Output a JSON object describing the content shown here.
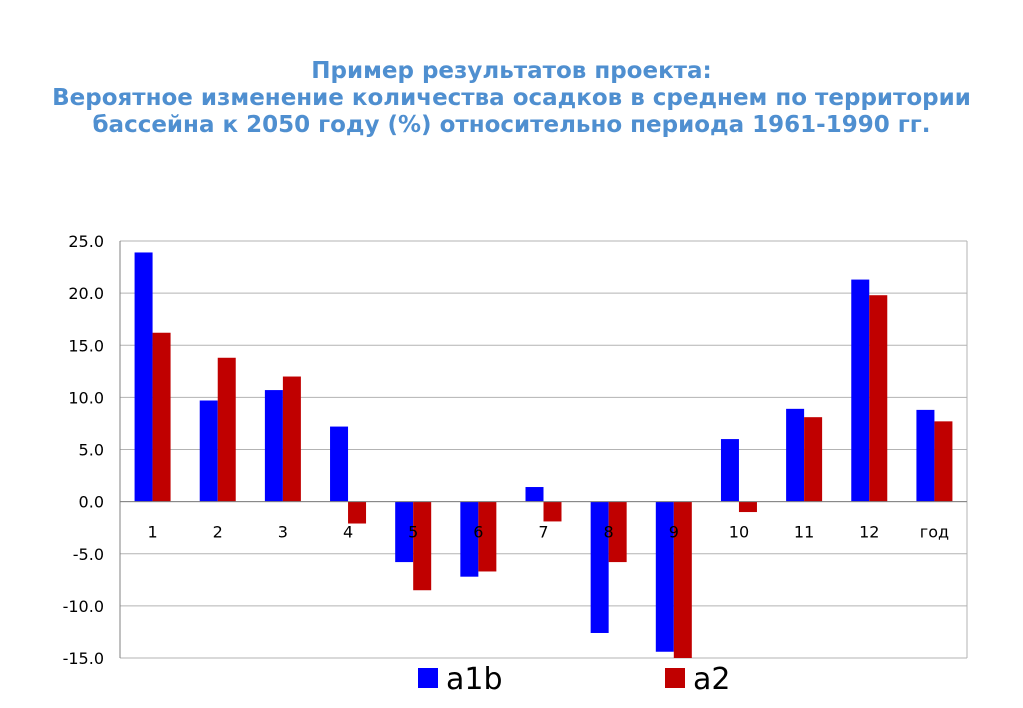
{
  "title": {
    "line1": "Пример результатов проекта:",
    "line2": "Вероятное изменение количества осадков в среднем по территории",
    "line3": "бассейна к 2050 году (%)  относительно периода 1961-1990 гг."
  },
  "chart_data": {
    "type": "bar",
    "categories": [
      "1",
      "2",
      "3",
      "4",
      "5",
      "6",
      "7",
      "8",
      "9",
      "10",
      "11",
      "12",
      "год"
    ],
    "series": [
      {
        "name": "a1b",
        "color": "#0000ff",
        "values": [
          23.9,
          9.7,
          10.7,
          7.2,
          -5.8,
          -7.2,
          1.4,
          -12.6,
          -14.4,
          6.0,
          8.9,
          21.3,
          8.8
        ]
      },
      {
        "name": "a2",
        "color": "#c00000",
        "values": [
          16.2,
          13.8,
          12.0,
          -2.1,
          -8.5,
          -6.7,
          -1.9,
          -5.8,
          -15.0,
          -1.0,
          8.1,
          19.8,
          7.7
        ]
      }
    ],
    "ylim": [
      -15,
      25
    ],
    "yticks": [
      "25.0",
      "20.0",
      "15.0",
      "10.0",
      "5.0",
      "0.0",
      "-5.0",
      "-10.0",
      "-15.0"
    ],
    "grid": true,
    "legend_position": "bottom"
  }
}
